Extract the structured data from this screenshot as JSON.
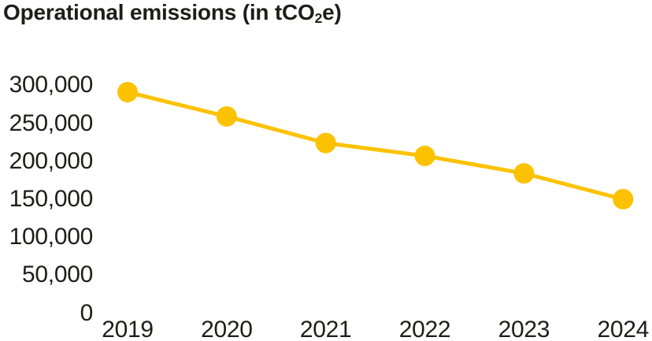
{
  "page": {
    "background": "#ffffff"
  },
  "title": {
    "prefix": "Operational emissions (in tCO",
    "subscript": "2",
    "suffix": "e)"
  },
  "chart_data": {
    "type": "line",
    "title": "Operational emissions (in tCO2e)",
    "categories": [
      "2019",
      "2020",
      "2021",
      "2022",
      "2023",
      "2024"
    ],
    "series": [
      {
        "name": "Operational emissions",
        "values": [
          291000,
          259000,
          224000,
          207000,
          184000,
          150000
        ]
      }
    ],
    "xlabel": "",
    "ylabel": "",
    "ylim": [
      0,
      300000
    ],
    "y_ticks": [
      300000,
      250000,
      200000,
      150000,
      100000,
      50000,
      0
    ],
    "y_tick_labels": [
      "300,000",
      "250,000",
      "200,000",
      "150,000",
      "100,000",
      "50,000",
      "0"
    ],
    "grid": false,
    "legend": false,
    "marker": "circle",
    "line_color": "#fcc200",
    "marker_color": "#fcc200",
    "text_color": "#1d1d1b"
  }
}
